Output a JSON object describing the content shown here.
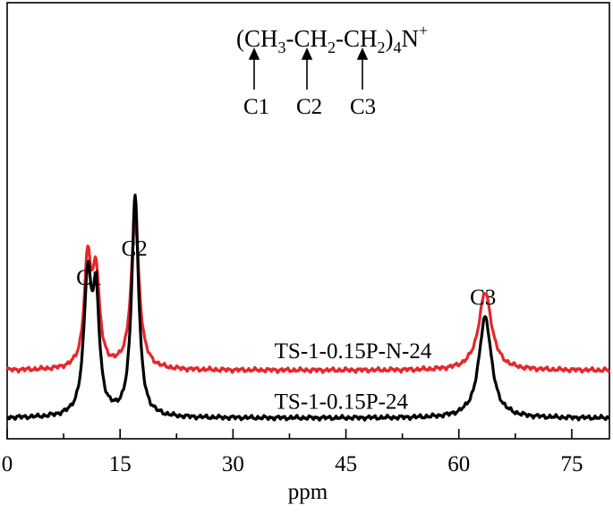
{
  "chart_data": {
    "type": "line",
    "title": "",
    "xlabel": "ppm",
    "ylabel": "",
    "xlim": [
      0,
      80
    ],
    "xticks": [
      0,
      15,
      30,
      45,
      60,
      75
    ],
    "x_tick_labels": [
      "0",
      "15",
      "30",
      "45",
      "60",
      "75"
    ],
    "grid": false,
    "legend": "none",
    "series": [
      {
        "name": "TS-1-0.15P-N-24",
        "color": "#e8262b",
        "baseline": 0.86,
        "peaks": [
          {
            "center": 10.7,
            "height": 1.88,
            "width": 0.55
          },
          {
            "center": 11.8,
            "height": 1.63,
            "width": 0.55
          },
          {
            "center": 17.0,
            "height": 2.66,
            "width": 0.65
          },
          {
            "center": 63.5,
            "height": 1.4,
            "width": 1.05
          }
        ]
      },
      {
        "name": "TS-1-0.15P-24",
        "color": "#000000",
        "baseline": 0.0,
        "peaks": [
          {
            "center": 10.7,
            "height": 2.4,
            "width": 0.6
          },
          {
            "center": 11.8,
            "height": 1.95,
            "width": 0.55
          },
          {
            "center": 17.0,
            "height": 3.97,
            "width": 0.55
          },
          {
            "center": 63.5,
            "height": 1.83,
            "width": 1.0
          }
        ]
      }
    ],
    "peak_labels": [
      {
        "text": "C1",
        "x": 10.9,
        "y": 2.4
      },
      {
        "text": "C2",
        "x": 16.9,
        "y": 2.93
      },
      {
        "text": "C3",
        "x": 63.2,
        "y": 2.05
      }
    ],
    "series_labels": [
      {
        "text": "TS-1-0.15P-N-24",
        "x": 35.5,
        "y": 1.08
      },
      {
        "text": "TS-1-0.15P-24",
        "x": 35.5,
        "y": 0.17
      }
    ],
    "structure": {
      "formula": {
        "open": "(CH",
        "s1": "3",
        "mid1": "-CH",
        "s2": "2",
        "mid2": "-CH",
        "s3": "2",
        "close": ")",
        "s4": "4",
        "n": "N",
        "charge": "+"
      },
      "labels": [
        "C1",
        "C2",
        "C3"
      ]
    }
  }
}
